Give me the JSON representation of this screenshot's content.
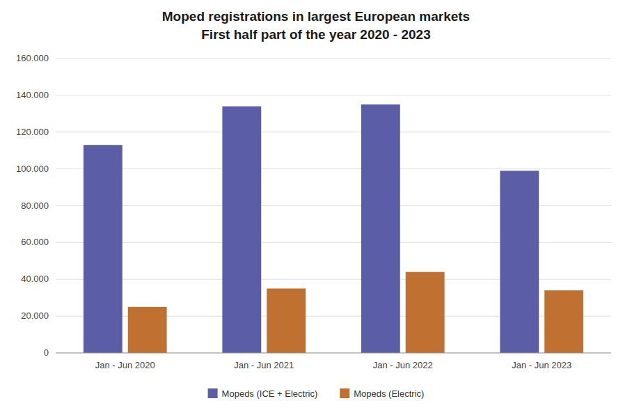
{
  "chart_data": {
    "type": "bar",
    "title": "Moped registrations in largest European markets",
    "subtitle": "First half part of the year 2020 - 2023",
    "categories": [
      "Jan - Jun 2020",
      "Jan - Jun 2021",
      "Jan - Jun 2022",
      "Jan - Jun 2023"
    ],
    "series": [
      {
        "name": "Mopeds (ICE + Electric)",
        "color": "#5B5EA6",
        "values": [
          113000,
          134000,
          135000,
          99000
        ]
      },
      {
        "name": "Mopeds (Electric)",
        "color": "#C07030",
        "values": [
          25000,
          35000,
          44000,
          34000
        ]
      }
    ],
    "ylim": [
      0,
      160000
    ],
    "yticks": [
      0,
      {
        "value": 20000,
        "label": "20.000"
      },
      {
        "value": 40000,
        "label": "40.000"
      },
      {
        "value": 60000,
        "label": "60.000"
      },
      {
        "value": 80000,
        "label": "80.000"
      },
      {
        "value": 100000,
        "label": "100.000"
      },
      {
        "value": 120000,
        "label": "120.000"
      },
      {
        "value": 140000,
        "label": "140.000"
      },
      {
        "value": 160000,
        "label": "160.000"
      }
    ],
    "grid": true,
    "legend": "bottom"
  }
}
